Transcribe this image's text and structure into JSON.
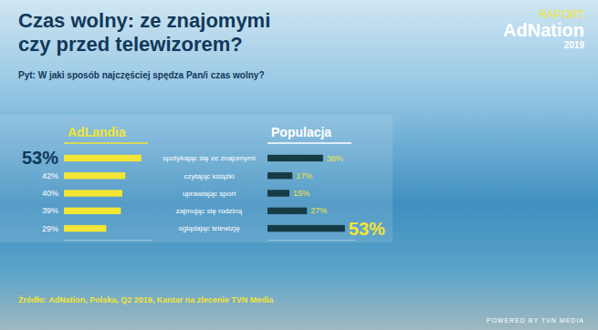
{
  "chart_data": {
    "type": "bar",
    "orientation": "horizontal",
    "title": "Czas wolny: ze znajomymi czy przed telewizorem?",
    "subtitle": "Pyt: W jaki sposób najczęściej spędza Pan/i czas wolny?",
    "categories": [
      "spotykając się ze znajomymi",
      "czytając książki",
      "uprawiając sport",
      "zajmując się rodziną",
      "oglądając telewizję"
    ],
    "series": [
      {
        "name": "AdLandia",
        "color": "#f3e534",
        "values": [
          53,
          42,
          40,
          39,
          29
        ],
        "value_labels": [
          "53%",
          "42%",
          "40%",
          "39%",
          "29%"
        ]
      },
      {
        "name": "Populacja",
        "color": "#163b45",
        "values": [
          38,
          17,
          15,
          27,
          53
        ],
        "value_labels": [
          "38%",
          "17%",
          "15%",
          "27%",
          "53%"
        ]
      }
    ],
    "xlim": [
      0,
      60
    ],
    "data_labels": true,
    "tick_labels": false,
    "grid": false,
    "source": "Źródło: AdNation, Polska, Q2 2019, Kantar na zlecenie TVN Media",
    "annotations": [
      "RAPORT",
      "AdNation",
      "2019",
      "POWERED BY TVN MEDIA"
    ]
  }
}
